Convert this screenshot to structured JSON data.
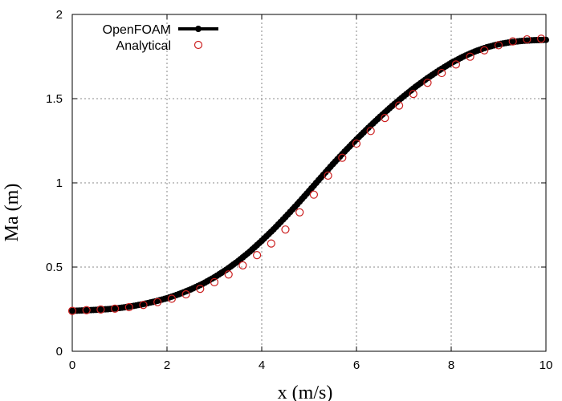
{
  "chart_data": {
    "type": "line",
    "title": "",
    "xlabel": "x (m/s)",
    "ylabel": "Ma (m)",
    "xlim": [
      0,
      10
    ],
    "ylim": [
      0,
      2
    ],
    "xticks": [
      "0",
      "2",
      "4",
      "6",
      "8",
      "10"
    ],
    "yticks": [
      "0",
      "0.5",
      "1",
      "1.5",
      "2"
    ],
    "grid": true,
    "legend_position": "top-left",
    "colors": {
      "openfoam": "#000000",
      "analytical": "#cc2020"
    },
    "series": [
      {
        "name": "OpenFOAM",
        "style": "thick line with filled markers",
        "x": [
          0.0,
          0.25,
          0.5,
          0.75,
          1.0,
          1.25,
          1.5,
          1.75,
          2.0,
          2.25,
          2.5,
          2.75,
          3.0,
          3.25,
          3.5,
          3.75,
          4.0,
          4.25,
          4.5,
          4.75,
          5.0,
          5.25,
          5.5,
          5.75,
          6.0,
          6.25,
          6.5,
          6.75,
          7.0,
          7.25,
          7.5,
          7.75,
          8.0,
          8.25,
          8.5,
          8.75,
          9.0,
          9.25,
          9.5,
          9.75,
          10.0
        ],
        "values": [
          0.24,
          0.243,
          0.246,
          0.25,
          0.257,
          0.267,
          0.28,
          0.296,
          0.315,
          0.339,
          0.367,
          0.4,
          0.439,
          0.484,
          0.535,
          0.592,
          0.656,
          0.724,
          0.797,
          0.873,
          0.952,
          1.032,
          1.111,
          1.186,
          1.258,
          1.327,
          1.393,
          1.456,
          1.515,
          1.571,
          1.622,
          1.669,
          1.712,
          1.749,
          1.78,
          1.805,
          1.823,
          1.835,
          1.843,
          1.847,
          1.849
        ]
      },
      {
        "name": "Analytical",
        "style": "open circles",
        "x": [
          0.0,
          0.3,
          0.6,
          0.9,
          1.2,
          1.5,
          1.8,
          2.1,
          2.4,
          2.7,
          3.0,
          3.3,
          3.6,
          3.9,
          4.2,
          4.5,
          4.8,
          5.1,
          5.4,
          5.7,
          6.0,
          6.3,
          6.6,
          6.9,
          7.2,
          7.5,
          7.8,
          8.1,
          8.4,
          8.7,
          9.0,
          9.3,
          9.6,
          9.9
        ],
        "values": [
          0.24,
          0.244,
          0.248,
          0.253,
          0.262,
          0.275,
          0.292,
          0.312,
          0.338,
          0.371,
          0.41,
          0.456,
          0.51,
          0.571,
          0.64,
          0.723,
          0.825,
          0.93,
          1.043,
          1.149,
          1.233,
          1.308,
          1.385,
          1.459,
          1.528,
          1.594,
          1.652,
          1.703,
          1.749,
          1.787,
          1.817,
          1.84,
          1.852,
          1.856
        ]
      }
    ]
  }
}
